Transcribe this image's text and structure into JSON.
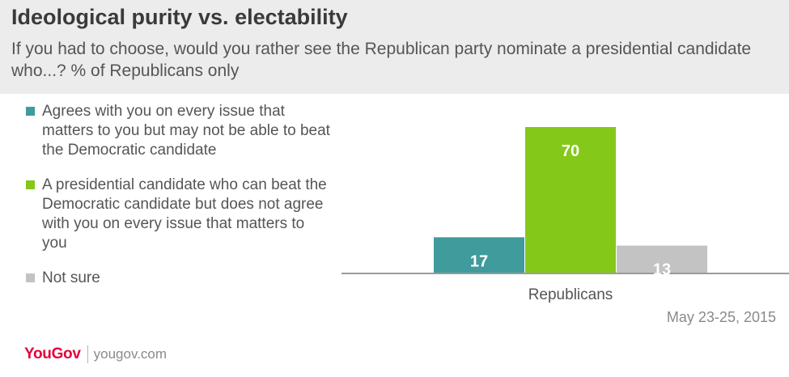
{
  "header": {
    "title": "Ideological purity vs. electability",
    "subtitle": "If you had to choose, would you rather see the Republican party nominate a presidential candidate who...? % of Republicans only"
  },
  "legend": {
    "items": [
      {
        "label": "Agrees with you on every issue that matters to you but may not be able to beat the Democratic candidate",
        "color": "#3f9b9c"
      },
      {
        "label": "A presidential candidate who can beat the Democratic candidate but does not agree with you on every issue that matters to you",
        "color": "#84c81a"
      },
      {
        "label": "Not sure",
        "color": "#c3c3c3"
      }
    ]
  },
  "chart_data": {
    "type": "bar",
    "categories": [
      "Republicans"
    ],
    "series": [
      {
        "name": "Agrees with you on every issue that matters to you but may not be able to beat the Democratic candidate",
        "values": [
          17
        ],
        "color": "#3f9b9c"
      },
      {
        "name": "A presidential candidate who can beat the Democratic candidate but does not agree with you on every issue that matters to you",
        "values": [
          70
        ],
        "color": "#84c81a"
      },
      {
        "name": "Not sure",
        "values": [
          13
        ],
        "color": "#c3c3c3"
      }
    ],
    "ylim": [
      0,
      70
    ],
    "grid": false,
    "legend_position": "left"
  },
  "footer": {
    "date": "May 23-25, 2015",
    "logo": "YouGov",
    "site": "yougov.com"
  }
}
